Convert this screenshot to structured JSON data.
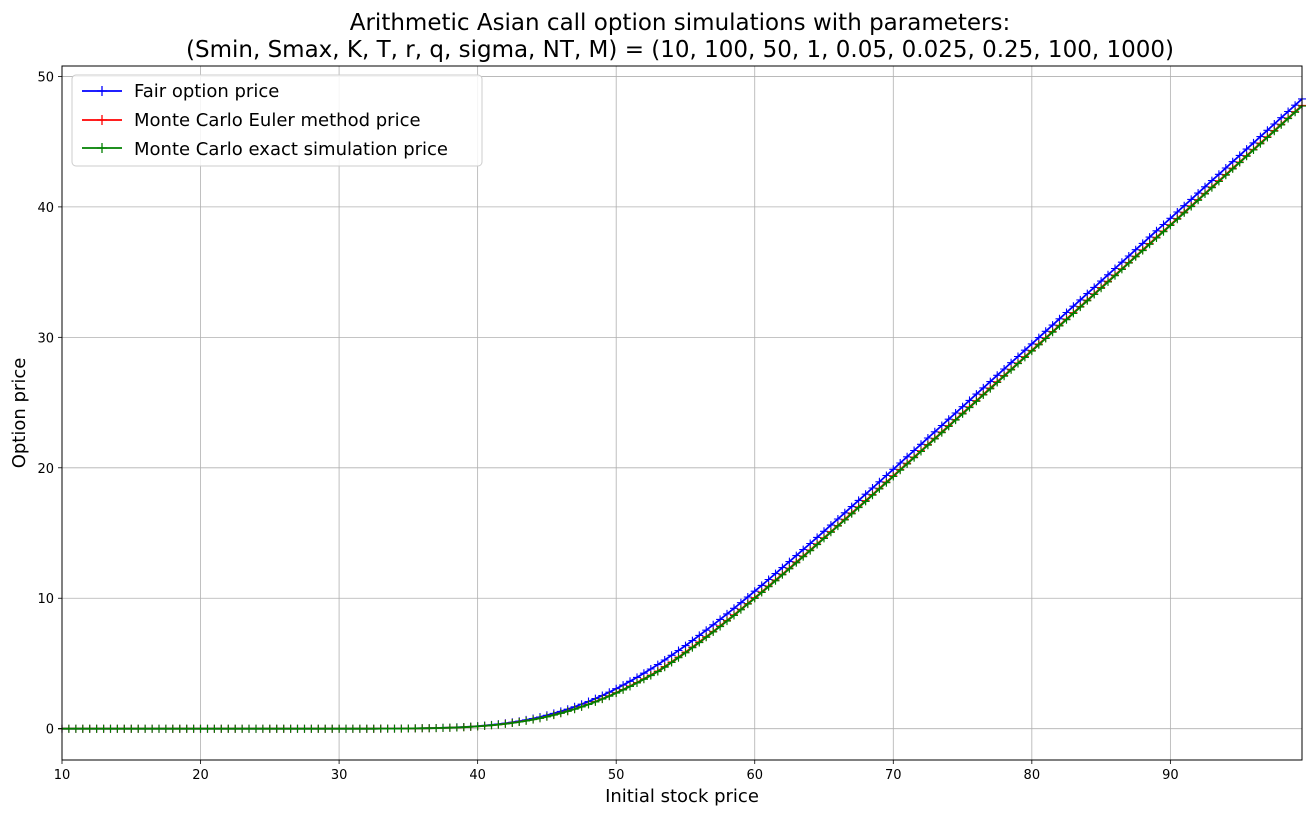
{
  "chart_data": {
    "type": "line",
    "title": "Arithmetic Asian call option simulations with parameters:",
    "subtitle": "(Smin, Smax, K, T, r, q, sigma, NT, M) = (10, 100, 50, 1, 0.05, 0.025, 0.25, 100, 1000)",
    "xlabel": "Initial stock price",
    "ylabel": "Option price",
    "xlim": [
      10,
      99.5
    ],
    "ylim": [
      -2.4,
      50.8
    ],
    "xticks": [
      "10",
      "20",
      "30",
      "40",
      "50",
      "60",
      "70",
      "80",
      "90"
    ],
    "yticks": [
      "0",
      "10",
      "20",
      "30",
      "40",
      "50"
    ],
    "grid": true,
    "legend_position": "top-left",
    "marker": "+",
    "x": {
      "start": 10,
      "step": 0.5,
      "count": 180
    },
    "params": {
      "K": 50,
      "T": 1,
      "r": 0.05,
      "q": 0.025,
      "sigma": 0.25
    },
    "series": [
      {
        "name": "Fair option price",
        "color": "#0000ff",
        "offset": 0
      },
      {
        "name": "Monte Carlo Euler method price",
        "color": "#ff0000",
        "offset": -0.5
      },
      {
        "name": "Monte Carlo exact simulation price",
        "color": "#008000",
        "offset": -0.55
      }
    ]
  }
}
